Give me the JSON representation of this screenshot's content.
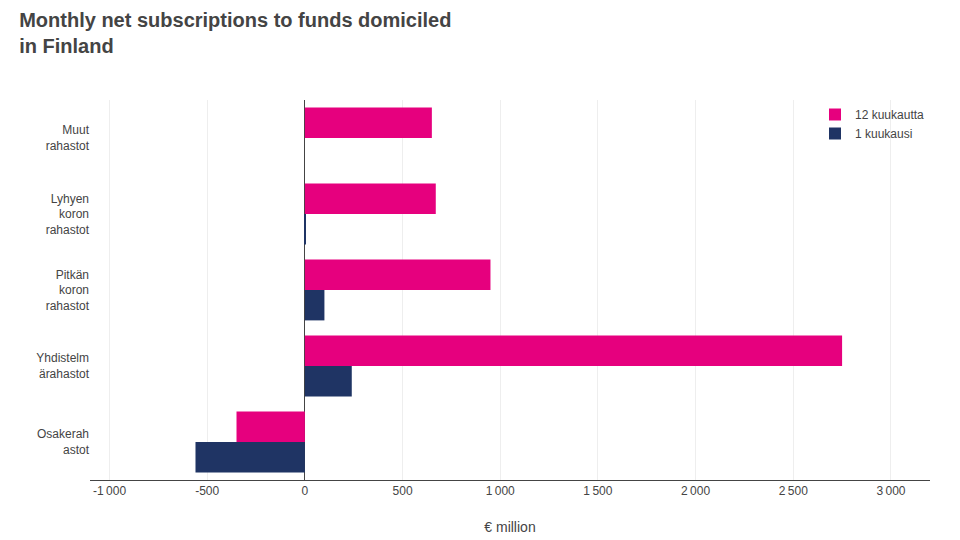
{
  "chart_data": {
    "type": "bar",
    "orientation": "horizontal",
    "title": "Monthly net subscriptions to funds domiciled\nin Finland",
    "categories": [
      "Muut\nrahastot",
      "Lyhyen\nkoron\nrahastot",
      "Pitkän\nkoron\nrahastot",
      "Yhdistelm\närahastot",
      "Osakerah\nastot"
    ],
    "series": [
      {
        "name": "12 kuukautta",
        "color": "#e6007e",
        "values": [
          650,
          670,
          950,
          2750,
          -350
        ]
      },
      {
        "name": "1 kuukausi",
        "color": "#1f3464",
        "values": [
          0,
          5,
          100,
          240,
          -560
        ]
      }
    ],
    "xlabel": "€ million",
    "xlim": [
      -1100,
      3200
    ],
    "xticks": [
      {
        "value": -1000,
        "label": "-1 000"
      },
      -500,
      0,
      500,
      {
        "value": 1000,
        "label": "1 000"
      },
      {
        "value": 1500,
        "label": "1 500"
      },
      {
        "value": 2000,
        "label": "2 000"
      },
      {
        "value": 2500,
        "label": "2 500"
      },
      {
        "value": 3000,
        "label": "3 000"
      }
    ],
    "grid": true,
    "legend": "upper right"
  }
}
